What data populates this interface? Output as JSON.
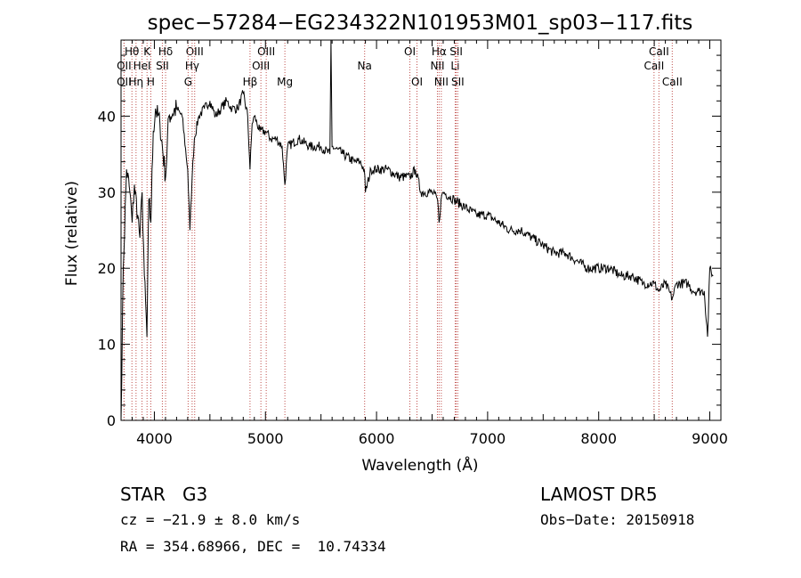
{
  "chart_data": {
    "type": "line",
    "title": "spec−57284−EG234322N101953M01_sp03−117.fits",
    "xlabel": "Wavelength (Å)",
    "ylabel": "Flux (relative)",
    "xlim": [
      3700,
      9100
    ],
    "ylim": [
      0,
      50
    ],
    "x_ticks": [
      4000,
      5000,
      6000,
      7000,
      8000,
      9000
    ],
    "y_ticks": [
      0,
      10,
      20,
      30,
      40
    ],
    "grid": false,
    "series": [
      {
        "x": [
          3700,
          3720,
          3750,
          3780,
          3800,
          3820,
          3850,
          3870,
          3890,
          3910,
          3933,
          3950,
          3968,
          3990,
          4010,
          4050,
          4101,
          4130,
          4200,
          4250,
          4300,
          4320,
          4340,
          4360,
          4400,
          4450,
          4500,
          4550,
          4600,
          4650,
          4700,
          4750,
          4800,
          4840,
          4861,
          4880,
          4900,
          4950,
          5000,
          5050,
          5100,
          5150,
          5175,
          5200,
          5300,
          5400,
          5500,
          5580,
          5590,
          5600,
          5700,
          5800,
          5850,
          5890,
          5900,
          5950,
          6000,
          6100,
          6200,
          6300,
          6350,
          6400,
          6500,
          6550,
          6563,
          6580,
          6600,
          6700,
          6800,
          6900,
          7000,
          7100,
          7200,
          7300,
          7400,
          7500,
          7600,
          7700,
          7800,
          7900,
          8000,
          8100,
          8200,
          8300,
          8400,
          8498,
          8542,
          8600,
          8662,
          8700,
          8800,
          8850,
          8900,
          8950,
          8980,
          9000,
          9030
        ],
        "y": [
          0,
          20,
          33,
          30,
          26,
          31,
          27,
          24,
          30,
          19,
          11,
          29,
          26,
          38,
          41,
          39,
          32,
          40,
          41,
          40,
          33,
          25,
          32,
          37,
          40,
          41,
          42,
          40,
          41,
          42,
          41,
          41,
          43,
          40,
          33,
          39,
          40,
          38,
          38,
          37,
          37,
          36,
          31,
          36,
          37,
          36,
          36,
          35,
          50,
          36,
          35,
          34,
          34,
          33,
          30,
          33,
          33,
          33,
          32,
          32,
          33,
          30,
          30,
          29,
          26,
          29,
          30,
          29,
          28,
          27,
          27,
          26,
          25,
          25,
          24,
          23,
          22,
          22,
          21,
          20,
          20,
          20,
          19,
          19,
          18,
          18,
          17,
          18,
          16,
          18,
          18,
          17,
          17,
          17,
          11,
          20,
          19
        ]
      }
    ],
    "spectral_lines": [
      {
        "label": "Hθ",
        "wavelength": 3798,
        "row": 1
      },
      {
        "label": "OII",
        "wavelength": 3727,
        "row": 2
      },
      {
        "label": "OII",
        "wavelength": 3727,
        "row": 3
      },
      {
        "label": "K",
        "wavelength": 3934,
        "row": 1
      },
      {
        "label": "HeI",
        "wavelength": 3889,
        "row": 2
      },
      {
        "label": "Hη",
        "wavelength": 3835,
        "row": 3
      },
      {
        "label": "Hδ",
        "wavelength": 4101,
        "row": 1
      },
      {
        "label": "SII",
        "wavelength": 4072,
        "row": 2
      },
      {
        "label": "H",
        "wavelength": 3968,
        "row": 3
      },
      {
        "label": "OIII",
        "wavelength": 4363,
        "row": 1
      },
      {
        "label": "Hγ",
        "wavelength": 4340,
        "row": 2
      },
      {
        "label": "G",
        "wavelength": 4304,
        "row": 3
      },
      {
        "label": "OIII",
        "wavelength": 5007,
        "row": 1
      },
      {
        "label": "OIII",
        "wavelength": 4959,
        "row": 2
      },
      {
        "label": "Hβ",
        "wavelength": 4861,
        "row": 3
      },
      {
        "label": "Mg",
        "wavelength": 5175,
        "row": 3
      },
      {
        "label": "Na",
        "wavelength": 5893,
        "row": 2
      },
      {
        "label": "OI",
        "wavelength": 6300,
        "row": 1
      },
      {
        "label": "OI",
        "wavelength": 6364,
        "row": 3
      },
      {
        "label": "Hα",
        "wavelength": 6563,
        "row": 1
      },
      {
        "label": "NII",
        "wavelength": 6548,
        "row": 2
      },
      {
        "label": "NII",
        "wavelength": 6583,
        "row": 3
      },
      {
        "label": "SII",
        "wavelength": 6717,
        "row": 1
      },
      {
        "label": "Li",
        "wavelength": 6708,
        "row": 2
      },
      {
        "label": "SII",
        "wavelength": 6731,
        "row": 3
      },
      {
        "label": "CaII",
        "wavelength": 8542,
        "row": 1
      },
      {
        "label": "CaII",
        "wavelength": 8498,
        "row": 2
      },
      {
        "label": "CaII",
        "wavelength": 8662,
        "row": 3
      }
    ],
    "line_color": "#000000",
    "marker_line_color": "#c0504d"
  },
  "info": {
    "object_class": "STAR",
    "subclass": "G3",
    "survey": "LAMOST DR5",
    "cz": "cz = −21.9 ± 8.0 km/s",
    "obs_date": "Obs−Date: 20150918",
    "radec": "RA = 354.68966, DEC =  10.74334"
  }
}
